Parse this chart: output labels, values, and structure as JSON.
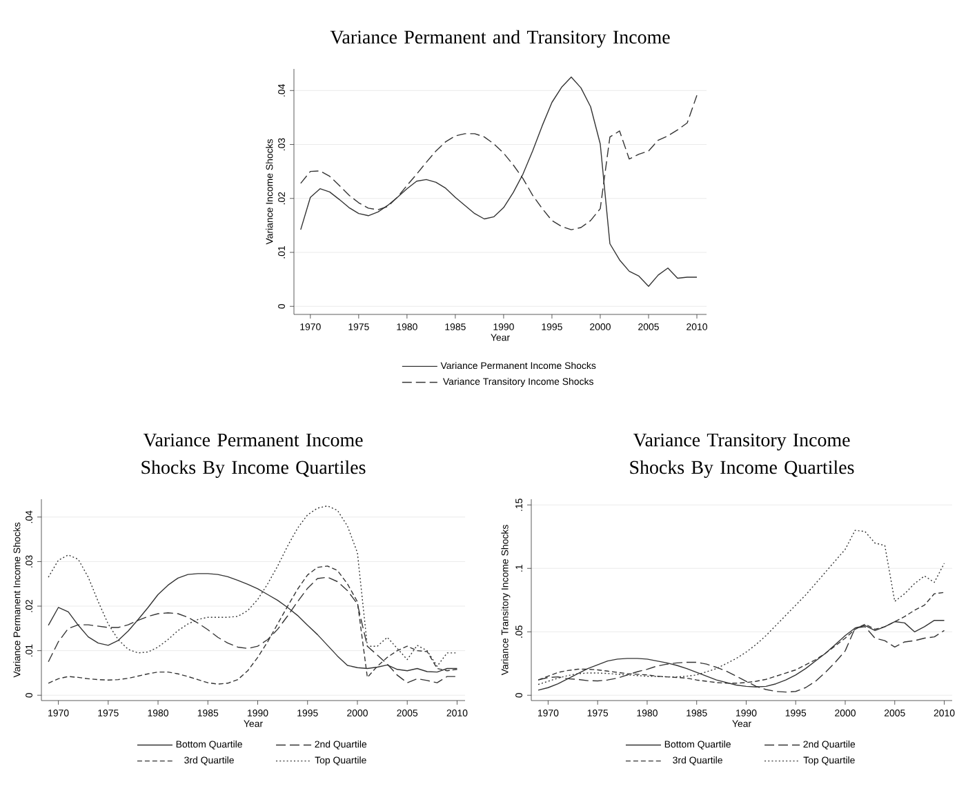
{
  "chart_data": [
    {
      "type": "line",
      "title": "Variance Permanent and Transitory Income",
      "xlabel": "Year",
      "ylabel": "Variance Income Shocks",
      "x": [
        1969,
        1970,
        1971,
        1972,
        1973,
        1974,
        1975,
        1976,
        1977,
        1978,
        1979,
        1980,
        1981,
        1982,
        1983,
        1984,
        1985,
        1986,
        1987,
        1988,
        1989,
        1990,
        1991,
        1992,
        1993,
        1994,
        1995,
        1996,
        1997,
        1998,
        1999,
        2000,
        2001,
        2002,
        2003,
        2004,
        2005,
        2006,
        2007,
        2008,
        2009,
        2010
      ],
      "xlim": [
        1968.3,
        2011
      ],
      "xticks": [
        1970,
        1975,
        1980,
        1985,
        1990,
        1995,
        2000,
        2005,
        2010
      ],
      "ylim": [
        -0.0015,
        0.044
      ],
      "yticks": [
        0,
        {
          "value": 0.01,
          "label": ".01"
        },
        {
          "value": 0.02,
          "label": ".02"
        },
        {
          "value": 0.03,
          "label": ".03"
        },
        {
          "value": 0.04,
          "label": ".04"
        }
      ],
      "grid": "y",
      "legend": "bottom",
      "series": [
        {
          "name": "Variance Permanent Income Shocks",
          "color": "#333333",
          "line_style": "solid",
          "values": [
            0.0142,
            0.0202,
            0.0218,
            0.0212,
            0.0198,
            0.0183,
            0.0172,
            0.0168,
            0.0175,
            0.0187,
            0.0202,
            0.0218,
            0.0232,
            0.0235,
            0.023,
            0.0219,
            0.0202,
            0.0187,
            0.0172,
            0.0162,
            0.0166,
            0.0183,
            0.0211,
            0.0245,
            0.0288,
            0.0335,
            0.0378,
            0.0406,
            0.0425,
            0.0405,
            0.037,
            0.0301,
            0.0116,
            0.0086,
            0.0065,
            0.0056,
            0.0037,
            0.0058,
            0.0071,
            0.0052,
            0.0054,
            0.0054
          ]
        },
        {
          "name": "Variance Transitory Income Shocks",
          "color": "#333333",
          "line_style": "dashed",
          "values": [
            0.0228,
            0.025,
            0.0251,
            0.0241,
            0.0224,
            0.0206,
            0.0192,
            0.0182,
            0.0179,
            0.0185,
            0.0202,
            0.0224,
            0.0245,
            0.0267,
            0.0288,
            0.0305,
            0.0316,
            0.032,
            0.032,
            0.0314,
            0.0301,
            0.0284,
            0.0262,
            0.0237,
            0.0206,
            0.0181,
            0.0159,
            0.0148,
            0.0142,
            0.0146,
            0.0159,
            0.0181,
            0.0314,
            0.0325,
            0.0273,
            0.0282,
            0.0288,
            0.0308,
            0.0316,
            0.0327,
            0.034,
            0.0391
          ]
        }
      ]
    },
    {
      "type": "line",
      "title": "Variance Permanent Income Shocks By Income Quartiles",
      "xlabel": "Year",
      "ylabel": "Variance Permanent Income Shocks",
      "x": [
        1969,
        1970,
        1971,
        1972,
        1973,
        1974,
        1975,
        1976,
        1977,
        1978,
        1979,
        1980,
        1981,
        1982,
        1983,
        1984,
        1985,
        1986,
        1987,
        1988,
        1989,
        1990,
        1991,
        1992,
        1993,
        1994,
        1995,
        1996,
        1997,
        1998,
        1999,
        2000,
        2001,
        2002,
        2003,
        2004,
        2005,
        2006,
        2007,
        2008,
        2009,
        2010
      ],
      "xlim": [
        1968.3,
        2010.8
      ],
      "xticks": [
        1970,
        1975,
        1980,
        1985,
        1990,
        1995,
        2000,
        2005,
        2010
      ],
      "ylim": [
        -0.0012,
        0.044
      ],
      "yticks": [
        0,
        {
          "value": 0.01,
          "label": ".01"
        },
        {
          "value": 0.02,
          "label": ".02"
        },
        {
          "value": 0.03,
          "label": ".03"
        },
        {
          "value": 0.04,
          "label": ".04"
        }
      ],
      "grid": "y",
      "legend": "bottom",
      "series": [
        {
          "name": "Bottom Quartile",
          "color": "#333333",
          "line_style": "solid",
          "values": [
            0.0157,
            0.0197,
            0.0187,
            0.0157,
            0.0131,
            0.0117,
            0.0112,
            0.0123,
            0.0144,
            0.017,
            0.0197,
            0.0226,
            0.0247,
            0.0263,
            0.0271,
            0.0273,
            0.0273,
            0.0271,
            0.0266,
            0.0258,
            0.0249,
            0.0239,
            0.0226,
            0.0213,
            0.0197,
            0.0179,
            0.0157,
            0.0136,
            0.0112,
            0.0088,
            0.0067,
            0.0062,
            0.006,
            0.0063,
            0.0068,
            0.0058,
            0.0055,
            0.006,
            0.0053,
            0.0052,
            0.006,
            0.006
          ]
        },
        {
          "name": "2nd Quartile",
          "color": "#333333",
          "line_style": "dashed",
          "values": [
            0.0075,
            0.012,
            0.015,
            0.0158,
            0.0158,
            0.0155,
            0.0152,
            0.0152,
            0.0158,
            0.0168,
            0.0177,
            0.0183,
            0.0185,
            0.0183,
            0.0175,
            0.0162,
            0.0147,
            0.013,
            0.0117,
            0.0108,
            0.0105,
            0.011,
            0.0125,
            0.0148,
            0.0178,
            0.021,
            0.024,
            0.0262,
            0.0265,
            0.0255,
            0.0235,
            0.0205,
            0.011,
            0.009,
            0.007,
            0.0045,
            0.0028,
            0.0037,
            0.0033,
            0.0028,
            0.0042,
            0.0042
          ]
        },
        {
          "name": "3rd Quartile",
          "color": "#333333",
          "line_style": "dashed",
          "values": [
            0.0027,
            0.0037,
            0.0042,
            0.004,
            0.0037,
            0.0035,
            0.0034,
            0.0035,
            0.0038,
            0.0043,
            0.0048,
            0.0052,
            0.0052,
            0.0048,
            0.0042,
            0.0035,
            0.0028,
            0.0025,
            0.0027,
            0.0035,
            0.0055,
            0.0085,
            0.012,
            0.016,
            0.02,
            0.0238,
            0.027,
            0.0287,
            0.029,
            0.028,
            0.025,
            0.021,
            0.004,
            0.0065,
            0.0085,
            0.01,
            0.011,
            0.01,
            0.0098,
            0.006,
            0.0055,
            0.0058
          ]
        },
        {
          "name": "Top Quartile",
          "color": "#333333",
          "line_style": "dotted",
          "values": [
            0.0265,
            0.0303,
            0.0315,
            0.0305,
            0.0265,
            0.021,
            0.016,
            0.0125,
            0.0103,
            0.0095,
            0.0097,
            0.0108,
            0.0125,
            0.0145,
            0.016,
            0.017,
            0.0175,
            0.0175,
            0.0175,
            0.0177,
            0.019,
            0.0215,
            0.025,
            0.029,
            0.0335,
            0.0375,
            0.0405,
            0.042,
            0.0425,
            0.0415,
            0.038,
            0.032,
            0.011,
            0.011,
            0.013,
            0.0105,
            0.008,
            0.0112,
            0.01,
            0.0065,
            0.0095,
            0.0095
          ]
        }
      ]
    },
    {
      "type": "line",
      "title": "Variance Transitory Income Shocks By Income Quartiles",
      "xlabel": "Year",
      "ylabel": "Variance Transitory Income Shocks",
      "x": [
        1969,
        1970,
        1971,
        1972,
        1973,
        1974,
        1975,
        1976,
        1977,
        1978,
        1979,
        1980,
        1981,
        1982,
        1983,
        1984,
        1985,
        1986,
        1987,
        1988,
        1989,
        1990,
        1991,
        1992,
        1993,
        1994,
        1995,
        1996,
        1997,
        1998,
        1999,
        2000,
        2001,
        2002,
        2003,
        2004,
        2005,
        2006,
        2007,
        2008,
        2009,
        2010
      ],
      "xlim": [
        1968.3,
        2010.8
      ],
      "xticks": [
        1970,
        1975,
        1980,
        1985,
        1990,
        1995,
        2000,
        2005,
        2010
      ],
      "ylim": [
        -0.0042,
        0.1545
      ],
      "yticks": [
        0,
        {
          "value": 0.05,
          "label": ".05"
        },
        {
          "value": 0.1,
          "label": ".1"
        },
        {
          "value": 0.15,
          "label": ".15"
        }
      ],
      "grid": "y",
      "legend": "bottom",
      "series": [
        {
          "name": "Bottom Quartile",
          "color": "#333333",
          "line_style": "solid",
          "values": [
            0.004,
            0.006,
            0.009,
            0.013,
            0.017,
            0.021,
            0.024,
            0.027,
            0.0285,
            0.029,
            0.029,
            0.0285,
            0.027,
            0.0255,
            0.0235,
            0.021,
            0.018,
            0.015,
            0.012,
            0.01,
            0.008,
            0.007,
            0.0065,
            0.007,
            0.009,
            0.012,
            0.016,
            0.021,
            0.027,
            0.033,
            0.04,
            0.047,
            0.053,
            0.055,
            0.051,
            0.054,
            0.058,
            0.057,
            0.05,
            0.054,
            0.059,
            0.059
          ]
        },
        {
          "name": "2nd Quartile",
          "color": "#333333",
          "line_style": "dashed",
          "values": [
            0.012,
            0.014,
            0.0145,
            0.013,
            0.0125,
            0.0115,
            0.0113,
            0.012,
            0.0135,
            0.016,
            0.0185,
            0.0205,
            0.023,
            0.0245,
            0.0255,
            0.026,
            0.026,
            0.0245,
            0.022,
            0.019,
            0.015,
            0.011,
            0.007,
            0.0045,
            0.003,
            0.0025,
            0.003,
            0.006,
            0.011,
            0.018,
            0.026,
            0.035,
            0.053,
            0.054,
            0.045,
            0.043,
            0.038,
            0.042,
            0.043,
            0.045,
            0.046,
            0.051
          ]
        },
        {
          "name": "3rd Quartile",
          "color": "#333333",
          "line_style": "dashed",
          "values": [
            0.012,
            0.015,
            0.018,
            0.0195,
            0.0205,
            0.0205,
            0.02,
            0.019,
            0.018,
            0.017,
            0.0165,
            0.016,
            0.015,
            0.0145,
            0.014,
            0.0135,
            0.012,
            0.011,
            0.01,
            0.0095,
            0.0095,
            0.01,
            0.011,
            0.0125,
            0.015,
            0.0175,
            0.02,
            0.024,
            0.028,
            0.033,
            0.039,
            0.045,
            0.052,
            0.056,
            0.052,
            0.054,
            0.058,
            0.062,
            0.067,
            0.071,
            0.08,
            0.081
          ]
        },
        {
          "name": "Top Quartile",
          "color": "#333333",
          "line_style": "dotted",
          "values": [
            0.0085,
            0.011,
            0.0135,
            0.0155,
            0.017,
            0.0175,
            0.0175,
            0.0172,
            0.0165,
            0.016,
            0.0155,
            0.015,
            0.0148,
            0.0145,
            0.0145,
            0.015,
            0.016,
            0.0185,
            0.021,
            0.025,
            0.029,
            0.034,
            0.04,
            0.047,
            0.055,
            0.063,
            0.071,
            0.079,
            0.088,
            0.097,
            0.106,
            0.115,
            0.13,
            0.129,
            0.12,
            0.118,
            0.074,
            0.08,
            0.088,
            0.094,
            0.089,
            0.104
          ]
        }
      ]
    }
  ]
}
